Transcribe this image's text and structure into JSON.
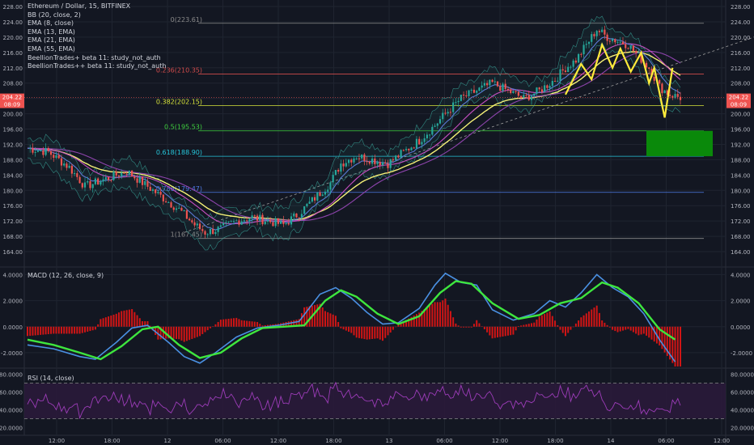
{
  "header": {
    "symbol_line": "Ethereum / Dollar, 15, BITFINEX",
    "indicators": [
      "BB (20, close, 2)",
      "EMA (8, close)",
      "EMA (13, EMA)",
      "EMA (21, EMA)",
      "EMA (55, EMA)",
      "BeellionTrades+ beta 11: study_not_auth",
      "BeellionTrades++ beta 11: study_not_auth"
    ]
  },
  "panes": {
    "macd_label": "MACD (12, 26, close, 9)",
    "rsi_label": "RSI (14, close)"
  },
  "price_tag": {
    "value": "204.22",
    "countdown": "08:09"
  },
  "colors": {
    "background": "#131722",
    "grid": "#1f2430",
    "candle_up": "#26a69a",
    "candle_down": "#ef5350",
    "ema8": "#5b7bd5",
    "ema13": "#c64fc2",
    "ema21": "#8e44ad",
    "ema55": "#f5f177",
    "bb": "#3aa59a",
    "fib": "#888888",
    "target_box": "#0a8f0a",
    "zigzag": "#ffeb3b",
    "macd_line": "#4a90e2",
    "signal_line": "#3ee63e",
    "hist_pos": "#d11515",
    "hist_neg": "#d11515",
    "rsi_line": "#9c3cb8",
    "rsi_band": "#2a1a3a"
  },
  "chart_data": {
    "type": "candlestick",
    "title": "Ethereum / Dollar, 15, BITFINEX",
    "x_ticks": [
      "12:00",
      "18:00",
      "12",
      "06:00",
      "12:00",
      "18:00",
      "13",
      "06:00",
      "12:00",
      "18:00",
      "14",
      "06:00",
      "12:00"
    ],
    "price_axis": {
      "ticks": [
        "228.00",
        "224.00",
        "220.00",
        "216.00",
        "212.00",
        "208.00",
        "204.00",
        "200.00",
        "196.00",
        "192.00",
        "188.00",
        "184.00",
        "180.00",
        "176.00",
        "172.00",
        "168.00",
        "164.00"
      ],
      "range": [
        164,
        228
      ]
    },
    "price_path": [
      [
        0,
        191
      ],
      [
        8,
        190
      ],
      [
        16,
        186
      ],
      [
        22,
        181
      ],
      [
        30,
        183
      ],
      [
        38,
        185
      ],
      [
        44,
        182
      ],
      [
        52,
        178
      ],
      [
        58,
        175
      ],
      [
        64,
        171
      ],
      [
        68,
        169
      ],
      [
        74,
        170
      ],
      [
        80,
        172
      ],
      [
        86,
        173
      ],
      [
        92,
        172
      ],
      [
        98,
        171
      ],
      [
        104,
        174
      ],
      [
        110,
        178
      ],
      [
        116,
        182
      ],
      [
        120,
        187
      ],
      [
        126,
        189
      ],
      [
        132,
        188
      ],
      [
        138,
        187
      ],
      [
        144,
        190
      ],
      [
        150,
        193
      ],
      [
        156,
        197
      ],
      [
        160,
        200
      ],
      [
        166,
        204
      ],
      [
        172,
        206
      ],
      [
        178,
        208
      ],
      [
        184,
        206
      ],
      [
        190,
        204
      ],
      [
        196,
        206
      ],
      [
        202,
        209
      ],
      [
        206,
        212
      ],
      [
        210,
        214
      ],
      [
        214,
        218
      ],
      [
        218,
        222
      ],
      [
        222,
        220
      ],
      [
        226,
        219
      ],
      [
        230,
        218
      ],
      [
        234,
        215
      ],
      [
        238,
        212
      ],
      [
        242,
        207
      ],
      [
        246,
        205
      ],
      [
        250,
        204.22
      ]
    ],
    "fibonacci": [
      {
        "level": "0",
        "value": 223.61,
        "label": "0(223.61)"
      },
      {
        "level": "0.236",
        "value": 210.35,
        "label": "0.236(210.35)"
      },
      {
        "level": "0.382",
        "value": 202.15,
        "label": "0.382(202.15)"
      },
      {
        "level": "0.5",
        "value": 195.53,
        "label": "0.5(195.53)"
      },
      {
        "level": "0.618",
        "value": 188.9,
        "label": "0.618(188.90)"
      },
      {
        "level": "0.786",
        "value": 179.47,
        "label": "0.786(179.47)"
      },
      {
        "level": "1",
        "value": 167.45,
        "label": "1(167.45)"
      }
    ],
    "target_box": {
      "from": 188.9,
      "to": 195.53
    },
    "zigzag": [
      [
        206,
        205
      ],
      [
        212,
        213
      ],
      [
        216,
        209
      ],
      [
        220,
        218
      ],
      [
        224,
        212
      ],
      [
        227,
        217
      ],
      [
        231,
        211
      ],
      [
        235,
        216
      ],
      [
        238,
        208
      ],
      [
        240,
        212
      ],
      [
        244,
        199
      ],
      [
        247,
        212
      ]
    ],
    "trend_line": [
      [
        60,
        169
      ],
      [
        300,
        228
      ]
    ],
    "macd": {
      "axis_ticks": [
        "4.0000",
        "2.0000",
        "0.0000",
        "-2.0000"
      ],
      "range": [
        -3,
        4.4
      ],
      "macd_path": [
        [
          0,
          -1.4
        ],
        [
          10,
          -1.7
        ],
        [
          20,
          -2.3
        ],
        [
          26,
          -2.5
        ],
        [
          34,
          -1.2
        ],
        [
          40,
          -0.1
        ],
        [
          46,
          0.1
        ],
        [
          54,
          -1.2
        ],
        [
          60,
          -2.3
        ],
        [
          66,
          -2.8
        ],
        [
          72,
          -2.0
        ],
        [
          80,
          -0.8
        ],
        [
          88,
          -0.1
        ],
        [
          96,
          0.1
        ],
        [
          104,
          0.4
        ],
        [
          112,
          2.5
        ],
        [
          118,
          3.0
        ],
        [
          124,
          2.2
        ],
        [
          130,
          1.1
        ],
        [
          136,
          0.2
        ],
        [
          142,
          0.3
        ],
        [
          150,
          1.4
        ],
        [
          156,
          3.2
        ],
        [
          160,
          4.1
        ],
        [
          166,
          3.4
        ],
        [
          172,
          3.2
        ],
        [
          178,
          1.3
        ],
        [
          186,
          0.5
        ],
        [
          194,
          1.0
        ],
        [
          200,
          2.0
        ],
        [
          206,
          1.5
        ],
        [
          212,
          2.6
        ],
        [
          218,
          4.0
        ],
        [
          224,
          3.0
        ],
        [
          230,
          2.3
        ],
        [
          236,
          1.0
        ],
        [
          242,
          -1.0
        ],
        [
          248,
          -2.7
        ]
      ],
      "signal_path": [
        [
          0,
          -1.0
        ],
        [
          10,
          -1.4
        ],
        [
          20,
          -2.0
        ],
        [
          28,
          -2.5
        ],
        [
          36,
          -1.5
        ],
        [
          44,
          -0.2
        ],
        [
          50,
          0.0
        ],
        [
          58,
          -1.4
        ],
        [
          66,
          -2.4
        ],
        [
          74,
          -2.0
        ],
        [
          82,
          -0.9
        ],
        [
          90,
          -0.1
        ],
        [
          98,
          0.0
        ],
        [
          106,
          0.1
        ],
        [
          114,
          2.0
        ],
        [
          120,
          2.8
        ],
        [
          126,
          2.3
        ],
        [
          134,
          1.0
        ],
        [
          142,
          0.2
        ],
        [
          150,
          0.8
        ],
        [
          158,
          2.6
        ],
        [
          164,
          3.5
        ],
        [
          170,
          3.3
        ],
        [
          178,
          1.8
        ],
        [
          188,
          0.6
        ],
        [
          196,
          0.9
        ],
        [
          204,
          1.8
        ],
        [
          212,
          2.2
        ],
        [
          220,
          3.4
        ],
        [
          226,
          3.0
        ],
        [
          234,
          1.8
        ],
        [
          242,
          -0.2
        ],
        [
          248,
          -1.0
        ]
      ]
    },
    "rsi": {
      "axis_ticks": [
        "80.0000",
        "60.0000",
        "40.0000",
        "20.0000"
      ],
      "range": [
        14,
        86
      ],
      "band": [
        30,
        70
      ]
    }
  }
}
